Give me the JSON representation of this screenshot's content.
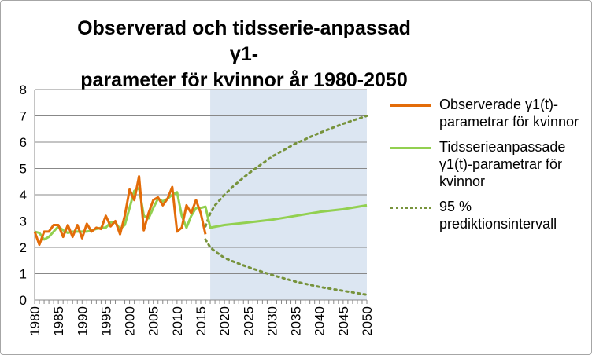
{
  "chart_data": {
    "type": "line",
    "title_lines": [
      "Observerad och tidsserie-anpassad γ1-",
      "parameter för kvinnor år 1980-2050"
    ],
    "xlabel": "",
    "ylabel": "",
    "xlim": [
      1980,
      2050
    ],
    "ylim": [
      0,
      8
    ],
    "y_ticks": [
      "0",
      "1",
      "2",
      "3",
      "4",
      "5",
      "6",
      "7",
      "8"
    ],
    "x_ticks": [
      "1980",
      "1985",
      "1990",
      "1995",
      "2000",
      "2005",
      "2010",
      "2015",
      "2020",
      "2025",
      "2030",
      "2035",
      "2040",
      "2045",
      "2050"
    ],
    "grid": "horizontal",
    "forecast_region": {
      "x_from": 2017,
      "x_to": 2050,
      "color": "#dce6f2"
    },
    "legend_position": "right",
    "series": [
      {
        "name": "Observerade γ1(t)-parametrar för kvinnor",
        "style": "solid",
        "color": "#e36c09",
        "x": [
          1980,
          1981,
          1982,
          1983,
          1984,
          1985,
          1986,
          1987,
          1988,
          1989,
          1990,
          1991,
          1992,
          1993,
          1994,
          1995,
          1996,
          1997,
          1998,
          1999,
          2000,
          2001,
          2002,
          2003,
          2004,
          2005,
          2006,
          2007,
          2008,
          2009,
          2010,
          2011,
          2012,
          2013,
          2014,
          2015,
          2016
        ],
        "y": [
          2.6,
          2.1,
          2.6,
          2.6,
          2.85,
          2.85,
          2.4,
          2.85,
          2.4,
          2.85,
          2.35,
          2.9,
          2.6,
          2.75,
          2.7,
          3.2,
          2.8,
          3.0,
          2.5,
          3.2,
          4.2,
          3.8,
          4.7,
          2.65,
          3.3,
          3.8,
          3.9,
          3.6,
          3.85,
          4.3,
          2.6,
          2.75,
          3.6,
          3.3,
          3.8,
          3.3,
          2.5
        ]
      },
      {
        "name": "Tidsserieanpassade γ1(t)-parametrar för kvinnor",
        "style": "solid",
        "color": "#92d050",
        "x": [
          1980,
          1981,
          1982,
          1983,
          1984,
          1985,
          1986,
          1987,
          1988,
          1989,
          1990,
          1991,
          1992,
          1993,
          1994,
          1995,
          1996,
          1997,
          1998,
          1999,
          2000,
          2001,
          2002,
          2003,
          2004,
          2005,
          2006,
          2007,
          2008,
          2009,
          2010,
          2011,
          2012,
          2013,
          2014,
          2015,
          2016,
          2017,
          2020,
          2025,
          2030,
          2035,
          2040,
          2045,
          2050
        ],
        "y": [
          2.6,
          2.55,
          2.3,
          2.4,
          2.6,
          2.8,
          2.65,
          2.55,
          2.6,
          2.6,
          2.6,
          2.6,
          2.65,
          2.7,
          2.75,
          2.75,
          2.95,
          2.95,
          2.7,
          2.85,
          3.5,
          4.15,
          4.25,
          3.2,
          3.1,
          3.5,
          3.85,
          3.75,
          3.85,
          4.0,
          4.1,
          3.2,
          2.75,
          3.2,
          3.5,
          3.5,
          3.55,
          2.75,
          2.85,
          2.95,
          3.05,
          3.2,
          3.35,
          3.45,
          3.6
        ]
      },
      {
        "name": "95 % prediktionsintervall",
        "style": "dotted",
        "color": "#77933c",
        "x": [
          2016,
          2017,
          2018,
          2020,
          2022,
          2025,
          2030,
          2035,
          2040,
          2045,
          2050
        ],
        "upper": [
          2.8,
          3.3,
          3.6,
          4.0,
          4.35,
          4.8,
          5.45,
          5.95,
          6.35,
          6.7,
          7.0
        ],
        "lower": [
          2.3,
          2.0,
          1.85,
          1.6,
          1.45,
          1.25,
          0.95,
          0.7,
          0.5,
          0.35,
          0.2
        ]
      }
    ]
  }
}
